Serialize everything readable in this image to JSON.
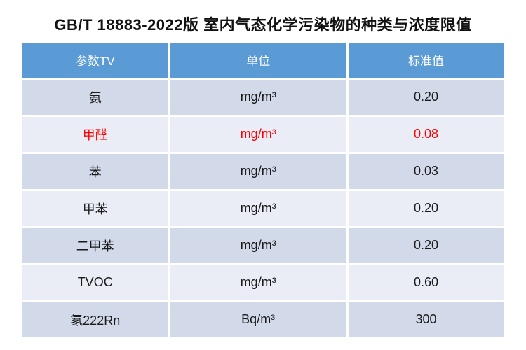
{
  "title": "GB/T 18883-2022版 室内气态化学污染物的种类与浓度限值",
  "table": {
    "headers": [
      "参数TV",
      "单位",
      "标准值"
    ],
    "rows": [
      {
        "param": "氨",
        "unit": "mg/m³",
        "value": "0.20"
      },
      {
        "param": "甲醛",
        "unit": "mg/m³",
        "value": "0.08"
      },
      {
        "param": "苯",
        "unit": "mg/m³",
        "value": "0.03"
      },
      {
        "param": "甲苯",
        "unit": "mg/m³",
        "value": "0.20"
      },
      {
        "param": "二甲苯",
        "unit": "mg/m³",
        "value": "0.20"
      },
      {
        "param": "TVOC",
        "unit": "mg/m³",
        "value": "0.60"
      },
      {
        "param": "氡222Rn",
        "unit": "Bq/m³",
        "value": "300"
      }
    ],
    "highlighted_row": "甲醛"
  },
  "colors": {
    "header_bg": "#5B9BD5",
    "header_text": "#FFFFFF",
    "row_odd_bg": "#D2DAEA",
    "row_even_bg": "#EAEDF6",
    "body_text": "#1A1A1A",
    "highlight_text": "#FF0000"
  },
  "chart_data": {
    "type": "table",
    "title": "GB/T 18883-2022版 室内气态化学污染物的种类与浓度限值",
    "columns": [
      "参数TV",
      "单位",
      "标准值"
    ],
    "rows": [
      [
        "氨",
        "mg/m³",
        "0.20"
      ],
      [
        "甲醛",
        "mg/m³",
        "0.08"
      ],
      [
        "苯",
        "mg/m³",
        "0.03"
      ],
      [
        "甲苯",
        "mg/m³",
        "0.20"
      ],
      [
        "二甲苯",
        "mg/m³",
        "0.20"
      ],
      [
        "TVOC",
        "mg/m³",
        "0.60"
      ],
      [
        "氡222Rn",
        "Bq/m³",
        "300"
      ]
    ],
    "annotations": "甲醛 row (formaldehyde) rendered entirely in red text",
    "layout": "header row blue, banded rows alternating darker/lighter blue-gray, white 3px gridline gaps, all cells center-aligned"
  }
}
